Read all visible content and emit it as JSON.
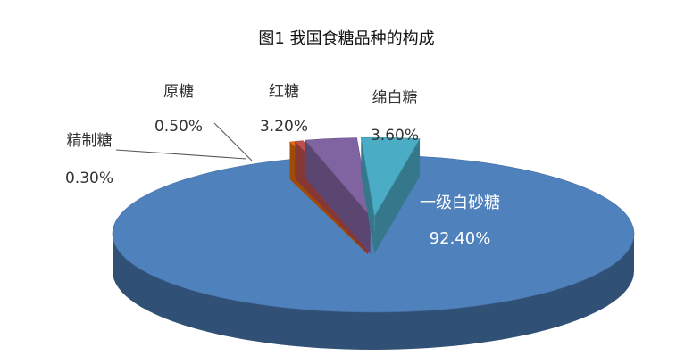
{
  "chart_data": {
    "type": "pie",
    "title": "图1  我国食糖品种的构成",
    "categories": [
      "一级白砂糖",
      "精制糖",
      "原糖",
      "红糖",
      "绵白糖"
    ],
    "values": [
      92.4,
      0.3,
      0.5,
      3.2,
      3.6
    ],
    "value_labels": [
      "92.40%",
      "0.30%",
      "0.50%",
      "3.20%",
      "3.60%"
    ],
    "colors": [
      "#4f81bd",
      "#e46c0a",
      "#c0504d",
      "#8064a2",
      "#4bacc6"
    ]
  }
}
